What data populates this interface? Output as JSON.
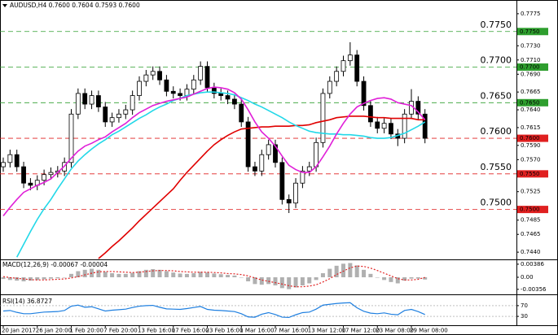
{
  "chart_data": [
    {
      "type": "candlestick",
      "title": "AUDUSD,H4 0.7600 0.7604 0.7593 0.7600",
      "categories": [
        "20 Jan 2017",
        null,
        null,
        null,
        null,
        "26 Jan 20:00",
        null,
        null,
        null,
        null,
        "1 Feb 20:00",
        null,
        null,
        null,
        null,
        "7 Feb 20:00",
        null,
        null,
        null,
        null,
        "13 Feb 16:00",
        null,
        null,
        null,
        null,
        "17 Feb 16:00",
        null,
        null,
        null,
        null,
        "23 Feb 16:00",
        null,
        null,
        null,
        null,
        "1 Mar 16:00",
        null,
        null,
        null,
        null,
        "7 Mar 16:00",
        null,
        null,
        null,
        null,
        "13 Mar 12:00",
        null,
        null,
        null,
        null,
        "17 Mar 12:00",
        null,
        null,
        null,
        null,
        "23 Mar 08:00",
        null,
        null,
        null,
        null,
        "29 Mar 08:00",
        null,
        null
      ],
      "open": [
        0.756,
        0.7566,
        0.7577,
        0.756,
        0.7537,
        0.7534,
        0.7541,
        0.7549,
        0.7552,
        0.7554,
        0.7566,
        0.7634,
        0.7663,
        0.7648,
        0.766,
        0.7644,
        0.7623,
        0.7629,
        0.7634,
        0.764,
        0.766,
        0.768,
        0.7689,
        0.7694,
        0.7682,
        0.7666,
        0.7663,
        0.766,
        0.7669,
        0.7682,
        0.7701,
        0.7671,
        0.7663,
        0.766,
        0.7655,
        0.7648,
        0.7623,
        0.756,
        0.7554,
        0.7577,
        0.7591,
        0.7566,
        0.7514,
        0.7509,
        0.7537,
        0.7554,
        0.756,
        0.7594,
        0.7663,
        0.768,
        0.7694,
        0.7709,
        0.7717,
        0.768,
        0.7646,
        0.7623,
        0.7614,
        0.7621,
        0.7606,
        0.76,
        0.7634,
        0.7652,
        0.7634
      ],
      "high": [
        0.7573,
        0.7584,
        0.7584,
        0.7567,
        0.7544,
        0.7548,
        0.7556,
        0.7559,
        0.7561,
        0.7573,
        0.7641,
        0.767,
        0.767,
        0.7667,
        0.7667,
        0.7651,
        0.7636,
        0.7641,
        0.7647,
        0.7667,
        0.7687,
        0.7696,
        0.7701,
        0.7701,
        0.7689,
        0.7673,
        0.767,
        0.7676,
        0.7689,
        0.7708,
        0.7708,
        0.7678,
        0.767,
        0.7667,
        0.7662,
        0.7655,
        0.763,
        0.7567,
        0.7584,
        0.7598,
        0.7598,
        0.7573,
        0.7521,
        0.7544,
        0.7561,
        0.7567,
        0.7601,
        0.767,
        0.7687,
        0.7701,
        0.7716,
        0.7735,
        0.7724,
        0.7687,
        0.7653,
        0.763,
        0.7628,
        0.7628,
        0.7613,
        0.7641,
        0.7669,
        0.7659,
        0.7641
      ],
      "low": [
        0.7553,
        0.7559,
        0.7553,
        0.753,
        0.7527,
        0.7527,
        0.7534,
        0.7542,
        0.7545,
        0.7547,
        0.7559,
        0.7627,
        0.7641,
        0.7641,
        0.7637,
        0.7616,
        0.7616,
        0.7622,
        0.7627,
        0.7633,
        0.7653,
        0.7673,
        0.7682,
        0.7675,
        0.7659,
        0.7656,
        0.7653,
        0.7653,
        0.7662,
        0.7675,
        0.7664,
        0.7656,
        0.7653,
        0.7648,
        0.7641,
        0.7616,
        0.7553,
        0.7547,
        0.7547,
        0.757,
        0.7559,
        0.7507,
        0.7495,
        0.7502,
        0.753,
        0.7547,
        0.7553,
        0.7587,
        0.7656,
        0.7673,
        0.7687,
        0.7702,
        0.7673,
        0.7639,
        0.7616,
        0.7607,
        0.7607,
        0.7599,
        0.7589,
        0.7593,
        0.7627,
        0.7627,
        0.7593
      ],
      "close": [
        0.7566,
        0.7577,
        0.756,
        0.7537,
        0.7534,
        0.7541,
        0.7549,
        0.7552,
        0.7554,
        0.7566,
        0.7634,
        0.7663,
        0.7648,
        0.766,
        0.7644,
        0.7623,
        0.7629,
        0.7634,
        0.764,
        0.766,
        0.768,
        0.7689,
        0.7694,
        0.7682,
        0.7666,
        0.7663,
        0.766,
        0.7669,
        0.7682,
        0.7701,
        0.7671,
        0.7663,
        0.766,
        0.7655,
        0.7648,
        0.7623,
        0.756,
        0.7554,
        0.7577,
        0.7591,
        0.7566,
        0.7514,
        0.7509,
        0.7537,
        0.7554,
        0.756,
        0.7594,
        0.7663,
        0.768,
        0.7694,
        0.7709,
        0.7717,
        0.768,
        0.7646,
        0.7623,
        0.7614,
        0.7621,
        0.7606,
        0.76,
        0.7634,
        0.7652,
        0.7634,
        0.76
      ],
      "series": [
        {
          "color": "#e00000",
          "values": [
            null,
            null,
            null,
            null,
            null,
            null,
            null,
            null,
            null,
            null,
            null,
            null,
            null,
            null,
            0.7431,
            0.7439,
            0.7448,
            0.7456,
            0.7465,
            0.7474,
            0.7484,
            0.7493,
            0.7502,
            0.7511,
            0.752,
            0.7529,
            0.7541,
            0.7552,
            0.7562,
            0.7572,
            0.7582,
            0.7591,
            0.7598,
            0.7604,
            0.7609,
            0.7613,
            0.7614,
            0.7615,
            0.7616,
            0.7616,
            0.7617,
            0.7617,
            0.7617,
            0.7618,
            0.7618,
            0.7619,
            0.7622,
            0.7624,
            0.7626,
            0.7629,
            0.763,
            0.7631,
            0.7631,
            0.7631,
            0.763,
            0.7629,
            0.7629,
            0.7628,
            0.7628,
            0.7628,
            0.7628,
            0.7626,
            0.7626
          ]
        },
        {
          "color": "#22d8e8",
          "values": [
            null,
            null,
            0.7433,
            0.7451,
            0.7469,
            0.7486,
            0.7501,
            0.7514,
            0.7529,
            0.7543,
            0.7557,
            0.7568,
            0.7577,
            0.7585,
            0.7592,
            0.7598,
            0.7605,
            0.761,
            0.7616,
            0.7622,
            0.7628,
            0.7633,
            0.7639,
            0.7644,
            0.7648,
            0.7653,
            0.7656,
            0.766,
            0.7662,
            0.7664,
            0.7665,
            0.7665,
            0.7664,
            0.7663,
            0.7661,
            0.7657,
            0.7653,
            0.7648,
            0.7644,
            0.7639,
            0.7634,
            0.7629,
            0.7623,
            0.7618,
            0.7614,
            0.761,
            0.7608,
            0.7607,
            0.7606,
            0.7606,
            0.7605,
            0.7605,
            0.7604,
            0.7603,
            0.7601,
            0.76,
            0.76,
            0.7601,
            0.7604,
            0.7607,
            0.7612,
            0.7617,
            0.7623
          ]
        },
        {
          "color": "#e020d8",
          "values": [
            0.7491,
            0.7503,
            0.7514,
            0.7524,
            0.7529,
            0.7534,
            0.7538,
            0.7543,
            0.7552,
            0.7561,
            0.7572,
            0.7582,
            0.7589,
            0.7593,
            0.7598,
            0.7602,
            0.7609,
            0.7615,
            0.7621,
            0.7629,
            0.7636,
            0.7641,
            0.7646,
            0.7649,
            0.7652,
            0.7654,
            0.7656,
            0.7658,
            0.7662,
            0.7666,
            0.767,
            0.7672,
            0.7671,
            0.7669,
            0.7664,
            0.7655,
            0.764,
            0.7623,
            0.7609,
            0.76,
            0.7589,
            0.7575,
            0.7562,
            0.7556,
            0.7552,
            0.7552,
            0.756,
            0.7574,
            0.7589,
            0.7606,
            0.7621,
            0.7634,
            0.7644,
            0.7649,
            0.7653,
            0.7656,
            0.7657,
            0.7655,
            0.765,
            0.7648,
            0.7646,
            0.7637,
            0.7626
          ]
        }
      ],
      "levels": [
        {
          "value": 0.775,
          "label": "0.7750",
          "color": "#2e9e2e"
        },
        {
          "value": 0.77,
          "label": "0.7700",
          "color": "#2e9e2e"
        },
        {
          "value": 0.765,
          "label": "0.7650",
          "color": "#2e9e2e"
        },
        {
          "value": 0.76,
          "label": "0.7600",
          "color": "#e02020"
        },
        {
          "value": 0.755,
          "label": "0.7550",
          "color": "#e02020"
        },
        {
          "value": 0.75,
          "label": "0.7500",
          "color": "#e02020"
        }
      ],
      "ylim": [
        0.7431,
        0.7792
      ],
      "yticks": [
        0.7775,
        {
          "value": 0.773,
          "label": "0.7730"
        },
        {
          "value": 0.771,
          "label": "0.7710"
        },
        {
          "value": 0.769,
          "label": "0.7690"
        },
        0.7665,
        {
          "value": 0.764,
          "label": "0.7640"
        },
        0.7615,
        {
          "value": 0.759,
          "label": "0.7590"
        },
        {
          "value": 0.757,
          "label": "0.7570"
        },
        0.7525,
        {
          "value": 0.7485,
          "label": "0.7485"
        },
        0.7465,
        {
          "value": 0.744,
          "label": "0.7440"
        }
      ],
      "grid": false
    },
    {
      "type": "macd",
      "title": "MACD(12,26,9) -0.00067 -0.00004",
      "series": [
        {
          "kind": "bar",
          "color": "#b0b0b0",
          "values": [
            -0.0005,
            -0.0008,
            -0.001,
            -0.0012,
            -0.001,
            -0.0008,
            -0.0006,
            -0.0004,
            -0.0003,
            0.0,
            0.001,
            0.0018,
            0.0022,
            0.0025,
            0.0022,
            0.0016,
            0.0012,
            0.001,
            0.001,
            0.0013,
            0.0018,
            0.0022,
            0.0024,
            0.0022,
            0.0018,
            0.0014,
            0.0011,
            0.001,
            0.0012,
            0.0016,
            0.0014,
            0.0011,
            0.0009,
            0.0007,
            0.0005,
            0.0,
            -0.0012,
            -0.002,
            -0.0022,
            -0.002,
            -0.0024,
            -0.0032,
            -0.0035,
            -0.003,
            -0.0024,
            -0.0018,
            -0.0008,
            0.0012,
            0.0025,
            0.0034,
            0.004,
            0.0042,
            0.0035,
            0.0022,
            0.001,
            0.0,
            -0.0008,
            -0.0014,
            -0.0018,
            -0.001,
            -0.0004,
            -0.0004,
            -0.00067
          ]
        },
        {
          "kind": "line",
          "dash": true,
          "color": "#e02020",
          "values": [
            0.0002,
            -0.0001,
            -0.0003,
            -0.0005,
            -0.0007,
            -0.0008,
            -0.0008,
            -0.0007,
            -0.0006,
            -0.0005,
            -0.0002,
            0.0002,
            0.0007,
            0.0012,
            0.0016,
            0.0017,
            0.0017,
            0.0016,
            0.0015,
            0.0014,
            0.0015,
            0.0017,
            0.0019,
            0.002,
            0.002,
            0.0019,
            0.0017,
            0.0016,
            0.0015,
            0.0015,
            0.0015,
            0.0014,
            0.0013,
            0.0011,
            0.001,
            0.0008,
            0.0004,
            -0.0002,
            -0.0008,
            -0.0012,
            -0.0016,
            -0.002,
            -0.0025,
            -0.0028,
            -0.0028,
            -0.0026,
            -0.0022,
            -0.0014,
            -0.0004,
            0.0008,
            0.0018,
            0.0028,
            0.0033,
            0.0032,
            0.0027,
            0.002,
            0.0012,
            0.0004,
            -0.0004,
            -0.0008,
            -0.0008,
            -0.0006,
            -4e-05
          ]
        }
      ],
      "ylim": [
        -0.0048,
        0.0048
      ],
      "yticks": [
        0.00386,
        {
          "value": 0,
          "label": "0.00"
        },
        -0.00356
      ],
      "grid": false
    },
    {
      "type": "line",
      "title": "RSI(14) 36.8727",
      "series": [
        {
          "kind": "line",
          "color": "#1e7fe0",
          "values": [
            50,
            52,
            45,
            40,
            40,
            43,
            46,
            47,
            48,
            52,
            68,
            72,
            64,
            66,
            58,
            50,
            53,
            55,
            57,
            63,
            68,
            70,
            71,
            64,
            58,
            57,
            56,
            59,
            63,
            67,
            56,
            53,
            52,
            50,
            48,
            40,
            28,
            27,
            38,
            44,
            37,
            27,
            26,
            36,
            44,
            46,
            57,
            72,
            75,
            78,
            80,
            81,
            62,
            49,
            42,
            40,
            43,
            38,
            36,
            52,
            56,
            48,
            36.8727
          ]
        }
      ],
      "ylim": [
        0,
        100
      ],
      "yticks": [
        70,
        30
      ],
      "grid": true
    }
  ]
}
